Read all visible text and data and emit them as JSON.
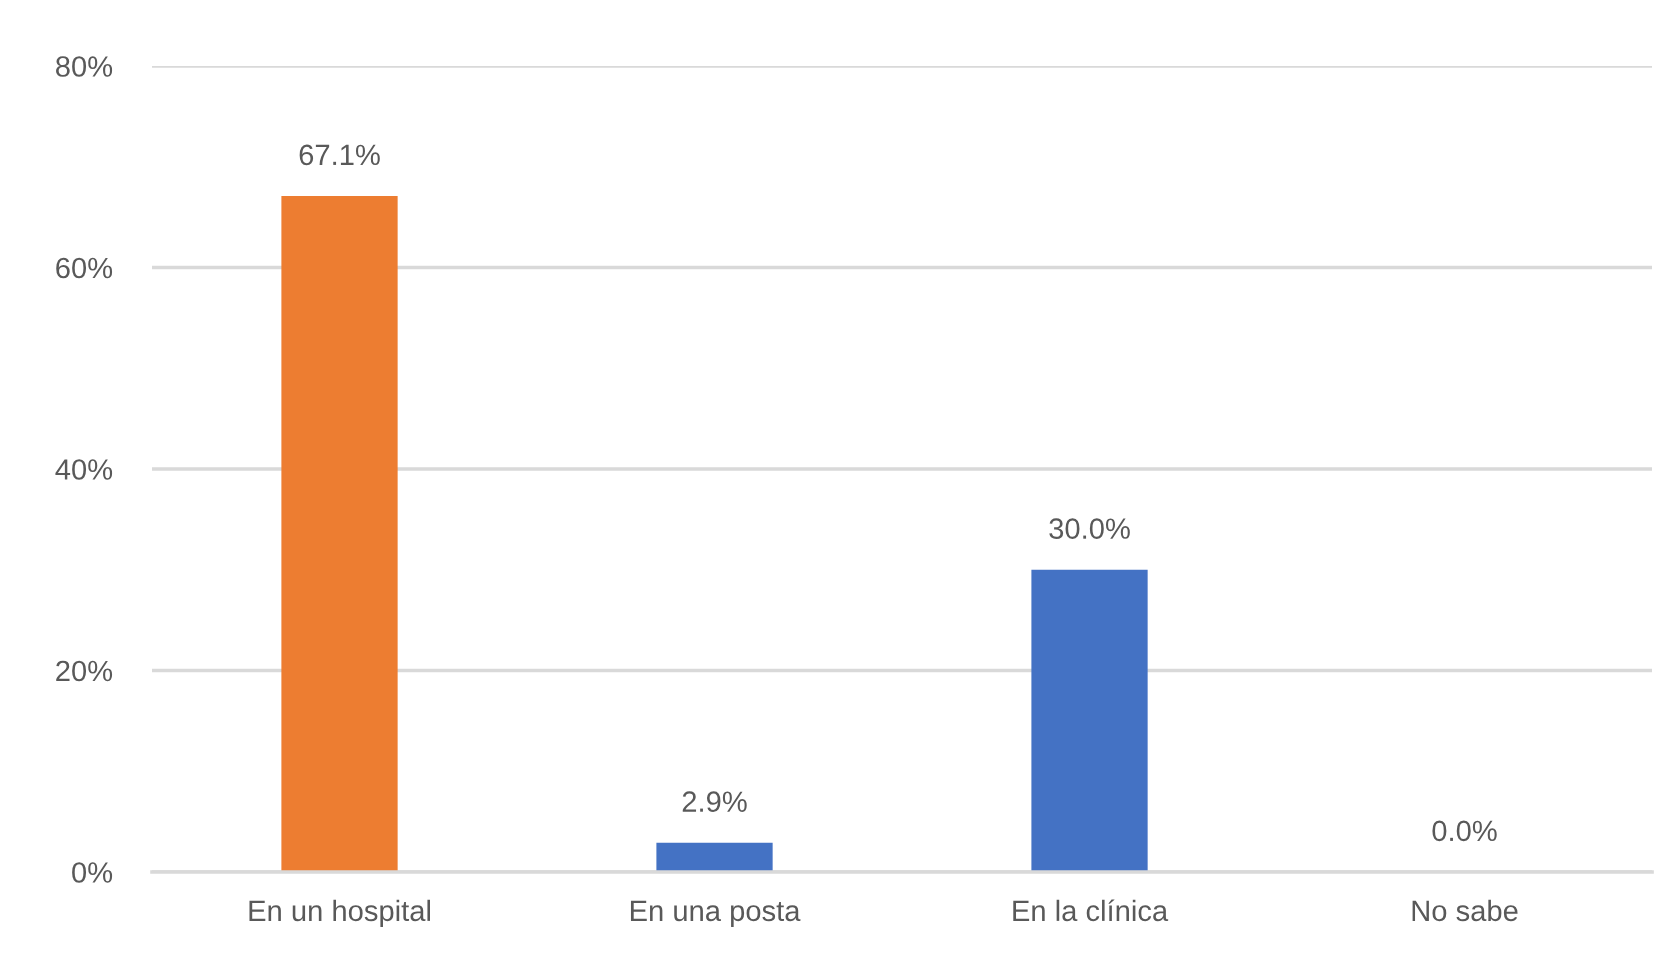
{
  "chart_data": {
    "type": "bar",
    "categories": [
      "En un hospital",
      "En una posta",
      "En la clínica",
      "No sabe"
    ],
    "values": [
      67.1,
      2.9,
      30.0,
      0.0
    ],
    "colors": [
      "#ed7d31",
      "#4472c4",
      "#4472c4",
      "#4472c4"
    ],
    "value_labels": [
      "67.1%",
      "2.9%",
      "30.0%",
      "0.0%"
    ],
    "ylim": [
      0,
      80
    ],
    "yticks": [
      {
        "value": 0,
        "label": "0%"
      },
      {
        "value": 20,
        "label": "20%"
      },
      {
        "value": 40,
        "label": "40%"
      },
      {
        "value": 60,
        "label": "60%"
      },
      {
        "value": 80,
        "label": "80%"
      }
    ],
    "grid": "y"
  }
}
